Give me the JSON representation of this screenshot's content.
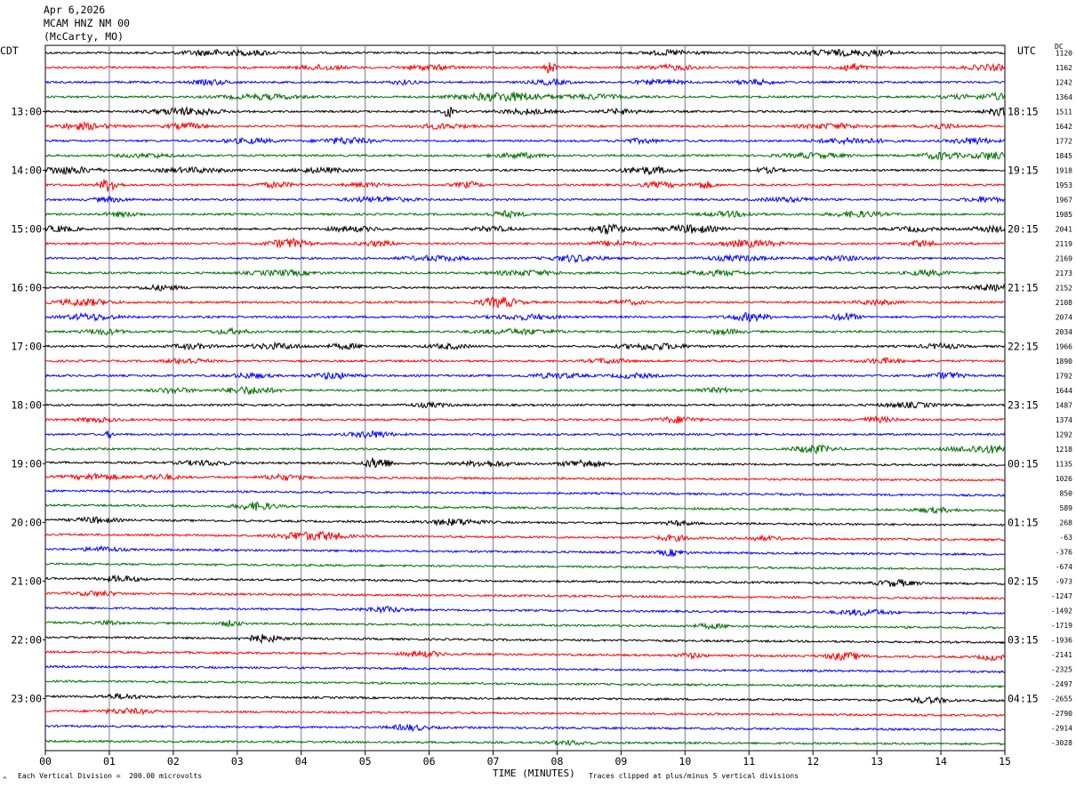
{
  "header": {
    "date": "Apr 6,2026",
    "station": "MCAM HNZ NM 00",
    "location": "(McCarty, MO)"
  },
  "left_axis_label": "CDT",
  "right_axis_label": "UTC",
  "dc_label": "DC",
  "footer": {
    "scale_note": "Each Vertical Division =  200.00 microvolts",
    "clip_note": "Traces clipped at plus/minus 5 vertical divisions",
    "corner_mark": "^"
  },
  "colors": {
    "trace_cycle": [
      "#000000",
      "#ff0000",
      "#0000ff",
      "#007000"
    ],
    "grid": "#7a7a9a"
  },
  "chart_data": {
    "type": "line",
    "title": "Apr 6,2026 MCAM HNZ NM 00 (McCarty, MO)",
    "xlabel": "TIME (MINUTES)",
    "xlim": [
      0,
      15
    ],
    "x_ticks": [
      "00",
      "01",
      "02",
      "03",
      "04",
      "05",
      "06",
      "07",
      "08",
      "09",
      "10",
      "11",
      "12",
      "13",
      "14",
      "15"
    ],
    "left_time_labels": [
      "13:00",
      "14:00",
      "15:00",
      "16:00",
      "17:00",
      "18:00",
      "19:00",
      "20:00",
      "21:00",
      "22:00",
      "23:00"
    ],
    "right_time_labels": [
      "18:15",
      "19:15",
      "20:15",
      "21:15",
      "22:15",
      "23:15",
      "00:15",
      "01:15",
      "02:15",
      "03:15",
      "04:15"
    ],
    "label_every_n_traces": 4,
    "first_label_trace": 4,
    "dc_offsets": [
      1120,
      1162,
      1242,
      1364,
      1511,
      1642,
      1772,
      1845,
      1918,
      1953,
      1967,
      1985,
      2041,
      2119,
      2169,
      2173,
      2152,
      2108,
      2074,
      2034,
      1966,
      1890,
      1792,
      1644,
      1487,
      1374,
      1292,
      1218,
      1135,
      1026,
      850,
      589,
      268,
      -63,
      -376,
      -674,
      -973,
      -1247,
      -1492,
      -1719,
      -1936,
      -2141,
      -2325,
      -2497,
      -2655,
      -2790,
      -2914,
      -3028
    ],
    "events": [
      [
        [
          2.6,
          0.45,
          0.35
        ],
        [
          3.3,
          0.3,
          0.25
        ],
        [
          9.8,
          0.4,
          0.3
        ],
        [
          12.3,
          0.5,
          0.35
        ],
        [
          13.0,
          0.3,
          0.3
        ]
      ],
      [
        [
          4.3,
          0.35,
          0.3
        ],
        [
          6.0,
          0.4,
          0.3
        ],
        [
          7.9,
          0.08,
          0.9
        ],
        [
          9.8,
          0.4,
          0.3
        ],
        [
          12.6,
          0.2,
          0.5
        ],
        [
          14.8,
          0.4,
          0.35
        ]
      ],
      [
        [
          2.6,
          0.3,
          0.3
        ],
        [
          5.6,
          0.2,
          0.25
        ],
        [
          7.9,
          0.3,
          0.3
        ],
        [
          9.6,
          0.4,
          0.25
        ],
        [
          11.1,
          0.3,
          0.3
        ]
      ],
      [
        [
          3.4,
          0.6,
          0.3
        ],
        [
          7.2,
          0.7,
          0.55
        ],
        [
          8.6,
          0.4,
          0.3
        ],
        [
          14.3,
          0.3,
          0.2
        ],
        [
          14.9,
          0.3,
          0.4
        ]
      ],
      [
        [
          2.2,
          0.5,
          0.45
        ],
        [
          6.3,
          0.08,
          0.7
        ],
        [
          7.5,
          0.4,
          0.3
        ],
        [
          9.0,
          0.3,
          0.3
        ],
        [
          14.9,
          0.2,
          0.45
        ]
      ],
      [
        [
          0.6,
          0.4,
          0.4
        ],
        [
          2.2,
          0.3,
          0.35
        ],
        [
          6.2,
          0.4,
          0.3
        ],
        [
          12.3,
          0.5,
          0.3
        ],
        [
          14.0,
          0.3,
          0.3
        ]
      ],
      [
        [
          3.2,
          0.4,
          0.3
        ],
        [
          4.7,
          0.4,
          0.4
        ],
        [
          9.3,
          0.3,
          0.25
        ],
        [
          12.6,
          0.5,
          0.35
        ],
        [
          14.5,
          0.3,
          0.4
        ]
      ],
      [
        [
          1.6,
          0.4,
          0.25
        ],
        [
          7.4,
          0.4,
          0.3
        ],
        [
          12.0,
          0.5,
          0.3
        ],
        [
          14.0,
          0.3,
          0.45
        ],
        [
          14.8,
          0.3,
          0.5
        ]
      ],
      [
        [
          0.3,
          0.5,
          0.45
        ],
        [
          2.3,
          0.5,
          0.3
        ],
        [
          4.3,
          0.4,
          0.3
        ],
        [
          9.4,
          0.4,
          0.45
        ],
        [
          11.3,
          0.2,
          0.3
        ]
      ],
      [
        [
          1.0,
          0.15,
          0.85
        ],
        [
          3.6,
          0.3,
          0.3
        ],
        [
          5.0,
          0.3,
          0.25
        ],
        [
          6.6,
          0.2,
          0.35
        ],
        [
          9.6,
          0.3,
          0.3
        ],
        [
          10.3,
          0.15,
          0.45
        ]
      ],
      [
        [
          1.0,
          0.3,
          0.25
        ],
        [
          5.2,
          0.5,
          0.3
        ],
        [
          11.6,
          0.4,
          0.25
        ],
        [
          14.7,
          0.3,
          0.3
        ]
      ],
      [
        [
          1.2,
          0.3,
          0.25
        ],
        [
          7.2,
          0.3,
          0.35
        ],
        [
          10.7,
          0.4,
          0.3
        ],
        [
          12.7,
          0.4,
          0.35
        ]
      ],
      [
        [
          0.2,
          0.3,
          0.35
        ],
        [
          4.8,
          0.4,
          0.3
        ],
        [
          7.0,
          0.3,
          0.3
        ],
        [
          8.8,
          0.25,
          0.65
        ],
        [
          10.1,
          0.4,
          0.5
        ],
        [
          13.6,
          0.3,
          0.3
        ],
        [
          14.8,
          0.3,
          0.35
        ]
      ],
      [
        [
          3.8,
          0.3,
          0.6
        ],
        [
          5.2,
          0.3,
          0.3
        ],
        [
          8.9,
          0.4,
          0.3
        ],
        [
          11.0,
          0.5,
          0.4
        ],
        [
          13.7,
          0.2,
          0.4
        ]
      ],
      [
        [
          6.1,
          0.5,
          0.3
        ],
        [
          8.3,
          0.4,
          0.4
        ],
        [
          10.8,
          0.5,
          0.3
        ],
        [
          12.5,
          0.4,
          0.25
        ]
      ],
      [
        [
          3.7,
          0.5,
          0.3
        ],
        [
          7.5,
          0.5,
          0.3
        ],
        [
          10.5,
          0.5,
          0.3
        ],
        [
          13.8,
          0.3,
          0.35
        ]
      ],
      [
        [
          1.8,
          0.3,
          0.3
        ],
        [
          14.8,
          0.3,
          0.35
        ]
      ],
      [
        [
          0.6,
          0.4,
          0.45
        ],
        [
          7.1,
          0.3,
          0.65
        ],
        [
          9.1,
          0.3,
          0.25
        ],
        [
          13.0,
          0.3,
          0.3
        ]
      ],
      [
        [
          0.7,
          0.4,
          0.4
        ],
        [
          7.5,
          0.5,
          0.3
        ],
        [
          11.0,
          0.3,
          0.5
        ],
        [
          12.5,
          0.2,
          0.5
        ]
      ],
      [
        [
          0.9,
          0.3,
          0.35
        ],
        [
          2.9,
          0.3,
          0.3
        ],
        [
          7.4,
          0.6,
          0.3
        ],
        [
          10.6,
          0.3,
          0.3
        ]
      ],
      [
        [
          2.3,
          0.3,
          0.3
        ],
        [
          3.6,
          0.4,
          0.35
        ],
        [
          4.7,
          0.3,
          0.3
        ],
        [
          6.3,
          0.3,
          0.3
        ],
        [
          9.5,
          0.5,
          0.4
        ],
        [
          14.0,
          0.3,
          0.3
        ]
      ],
      [
        [
          2.2,
          0.3,
          0.35
        ],
        [
          8.8,
          0.3,
          0.3
        ],
        [
          13.1,
          0.3,
          0.3
        ]
      ],
      [
        [
          3.2,
          0.3,
          0.3
        ],
        [
          4.5,
          0.3,
          0.4
        ],
        [
          8.0,
          0.4,
          0.3
        ],
        [
          9.2,
          0.3,
          0.3
        ],
        [
          14.1,
          0.25,
          0.4
        ]
      ],
      [
        [
          2.0,
          0.3,
          0.3
        ],
        [
          3.2,
          0.4,
          0.45
        ],
        [
          10.5,
          0.4,
          0.25
        ]
      ],
      [
        [
          6.0,
          0.3,
          0.25
        ],
        [
          13.5,
          0.4,
          0.3
        ]
      ],
      [
        [
          0.8,
          0.3,
          0.25
        ],
        [
          9.9,
          0.3,
          0.4
        ],
        [
          13.0,
          0.3,
          0.3
        ]
      ],
      [
        [
          1.0,
          0.05,
          0.5
        ],
        [
          5.1,
          0.3,
          0.45
        ]
      ],
      [
        [
          12.0,
          0.3,
          0.5
        ],
        [
          14.5,
          0.4,
          0.35
        ],
        [
          14.9,
          0.3,
          0.3
        ]
      ],
      [
        [
          2.5,
          0.4,
          0.3
        ],
        [
          5.2,
          0.2,
          0.75
        ],
        [
          6.9,
          0.4,
          0.35
        ],
        [
          8.4,
          0.3,
          0.5
        ]
      ],
      [
        [
          0.8,
          0.4,
          0.35
        ],
        [
          1.8,
          0.3,
          0.3
        ],
        [
          3.7,
          0.3,
          0.35
        ]
      ],
      [],
      [
        [
          3.3,
          0.3,
          0.5
        ],
        [
          13.9,
          0.3,
          0.3
        ]
      ],
      [
        [
          0.8,
          0.3,
          0.35
        ],
        [
          6.4,
          0.4,
          0.4
        ],
        [
          9.9,
          0.2,
          0.3
        ]
      ],
      [
        [
          3.9,
          0.3,
          0.45
        ],
        [
          4.4,
          0.3,
          0.5
        ],
        [
          9.8,
          0.3,
          0.3
        ],
        [
          11.2,
          0.3,
          0.25
        ]
      ],
      [
        [
          0.9,
          0.3,
          0.3
        ],
        [
          9.8,
          0.2,
          0.4
        ]
      ],
      [],
      [
        [
          1.2,
          0.3,
          0.35
        ],
        [
          13.3,
          0.3,
          0.4
        ]
      ],
      [
        [
          0.8,
          0.3,
          0.3
        ]
      ],
      [
        [
          5.3,
          0.3,
          0.35
        ],
        [
          12.8,
          0.4,
          0.35
        ]
      ],
      [
        [
          1.0,
          0.15,
          0.3
        ],
        [
          2.9,
          0.15,
          0.35
        ],
        [
          10.4,
          0.3,
          0.25
        ]
      ],
      [
        [
          3.4,
          0.3,
          0.45
        ]
      ],
      [
        [
          5.9,
          0.3,
          0.35
        ],
        [
          10.1,
          0.2,
          0.3
        ],
        [
          12.5,
          0.3,
          0.45
        ],
        [
          14.8,
          0.2,
          0.35
        ]
      ],
      [],
      [],
      [
        [
          1.2,
          0.3,
          0.3
        ],
        [
          13.8,
          0.3,
          0.35
        ]
      ],
      [
        [
          1.3,
          0.4,
          0.3
        ]
      ],
      [
        [
          5.7,
          0.3,
          0.35
        ]
      ],
      [
        [
          8.2,
          0.3,
          0.25
        ]
      ]
    ],
    "noise_level": 0.14,
    "drift": [
      0,
      0,
      0,
      0,
      0,
      0,
      0,
      0,
      0,
      0,
      0,
      0,
      0,
      0,
      0,
      0,
      0,
      0,
      0,
      0,
      0,
      0,
      0,
      0,
      0,
      0,
      0,
      0,
      -3,
      -4,
      -5,
      -6,
      -6,
      -6,
      -6,
      -6,
      -6,
      -6,
      -6,
      -6,
      -6,
      -6,
      -6,
      -6,
      -5,
      -5,
      -4,
      -3
    ],
    "ylabel": ""
  }
}
